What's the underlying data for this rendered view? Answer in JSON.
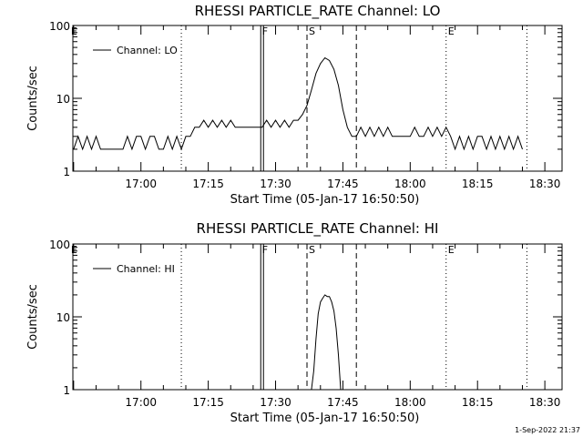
{
  "chart_data": [
    {
      "type": "line",
      "title": "RHESSI PARTICLE_RATE Channel: LO",
      "xlabel": "Start Time (05-Jan-17 16:50:50)",
      "ylabel": "Counts/sec",
      "yscale": "log",
      "ylim": [
        1,
        100
      ],
      "xlim_minutes_after_start": [
        -6,
        103
      ],
      "x_tick_labels": [
        "17:00",
        "17:15",
        "17:30",
        "17:45",
        "18:00",
        "18:15",
        "18:30"
      ],
      "y_tick_labels": [
        "1",
        "10",
        "100"
      ],
      "legend": {
        "position": "top-left",
        "entries": [
          "Channel: LO"
        ]
      },
      "markers": [
        {
          "label": "E",
          "style": "dotted",
          "time": "16:44"
        },
        {
          "label": "",
          "style": "dotted",
          "time": "17:09"
        },
        {
          "label": "F",
          "style": "solid-double",
          "time": "17:27"
        },
        {
          "label": "S",
          "style": "dashed",
          "time": "17:37"
        },
        {
          "label": "",
          "style": "dashed",
          "time": "17:48"
        },
        {
          "label": "E",
          "style": "dotted",
          "time": "18:08"
        },
        {
          "label": "",
          "style": "dotted",
          "time": "18:26"
        }
      ],
      "series": [
        {
          "name": "Channel: LO",
          "x": [
            "16:45",
            "16:46",
            "16:47",
            "16:48",
            "16:49",
            "16:50",
            "16:51",
            "16:52",
            "16:53",
            "16:54",
            "16:55",
            "16:56",
            "16:57",
            "16:58",
            "16:59",
            "17:00",
            "17:01",
            "17:02",
            "17:03",
            "17:04",
            "17:05",
            "17:06",
            "17:07",
            "17:08",
            "17:09",
            "17:10",
            "17:11",
            "17:12",
            "17:13",
            "17:14",
            "17:15",
            "17:16",
            "17:17",
            "17:18",
            "17:19",
            "17:20",
            "17:21",
            "17:22",
            "17:23",
            "17:24",
            "17:25",
            "17:26",
            "17:27",
            "17:28",
            "17:29",
            "17:30",
            "17:31",
            "17:32",
            "17:33",
            "17:34",
            "17:35",
            "17:36",
            "17:37",
            "17:38",
            "17:39",
            "17:40",
            "17:41",
            "17:42",
            "17:43",
            "17:44",
            "17:45",
            "17:46",
            "17:47",
            "17:48",
            "17:49",
            "17:50",
            "17:51",
            "17:52",
            "17:53",
            "17:54",
            "17:55",
            "17:56",
            "17:57",
            "17:58",
            "17:59",
            "18:00",
            "18:01",
            "18:02",
            "18:03",
            "18:04",
            "18:05",
            "18:06",
            "18:07",
            "18:08",
            "18:09",
            "18:10",
            "18:11",
            "18:12",
            "18:13",
            "18:14",
            "18:15",
            "18:16",
            "18:17",
            "18:18",
            "18:19",
            "18:20",
            "18:21",
            "18:22",
            "18:23",
            "18:24",
            "18:25"
          ],
          "values": [
            2,
            3,
            2,
            3,
            2,
            3,
            2,
            2,
            2,
            2,
            2,
            2,
            3,
            2,
            3,
            3,
            2,
            3,
            3,
            2,
            2,
            3,
            2,
            3,
            2,
            3,
            3,
            4,
            4,
            5,
            4,
            5,
            4,
            5,
            4,
            5,
            4,
            4,
            4,
            4,
            4,
            4,
            4,
            5,
            4,
            5,
            4,
            5,
            4,
            5,
            5,
            6,
            8,
            13,
            22,
            30,
            36,
            33,
            25,
            15,
            7,
            4,
            3,
            3,
            4,
            3,
            4,
            3,
            4,
            3,
            4,
            3,
            3,
            3,
            3,
            3,
            4,
            3,
            3,
            4,
            3,
            4,
            3,
            4,
            3,
            2,
            3,
            2,
            3,
            2,
            3,
            3,
            2,
            3,
            2,
            3,
            2,
            3,
            2,
            3,
            2
          ]
        }
      ]
    },
    {
      "type": "line",
      "title": "RHESSI PARTICLE_RATE Channel: HI",
      "xlabel": "Start Time (05-Jan-17 16:50:50)",
      "ylabel": "Counts/sec",
      "yscale": "log",
      "ylim": [
        1,
        100
      ],
      "xlim_minutes_after_start": [
        -6,
        103
      ],
      "x_tick_labels": [
        "17:00",
        "17:15",
        "17:30",
        "17:45",
        "18:00",
        "18:15",
        "18:30"
      ],
      "y_tick_labels": [
        "1",
        "10",
        "100"
      ],
      "legend": {
        "position": "top-left",
        "entries": [
          "Channel: HI"
        ]
      },
      "markers": [
        {
          "label": "E",
          "style": "dotted",
          "time": "16:44"
        },
        {
          "label": "",
          "style": "dotted",
          "time": "17:09"
        },
        {
          "label": "F",
          "style": "solid-double",
          "time": "17:27"
        },
        {
          "label": "S",
          "style": "dashed",
          "time": "17:37"
        },
        {
          "label": "",
          "style": "dashed",
          "time": "17:48"
        },
        {
          "label": "E",
          "style": "dotted",
          "time": "18:08"
        },
        {
          "label": "",
          "style": "dotted",
          "time": "18:26"
        }
      ],
      "series": [
        {
          "name": "Channel: HI",
          "x": [
            "17:38",
            "17:38:30",
            "17:39",
            "17:39:30",
            "17:40",
            "17:40:30",
            "17:41",
            "17:41:30",
            "17:42",
            "17:42:30",
            "17:43",
            "17:43:30",
            "17:44",
            "17:44:30"
          ],
          "values": [
            1,
            1.8,
            5,
            11,
            16,
            18,
            20,
            19,
            19,
            16,
            12,
            7,
            3,
            1
          ]
        }
      ]
    }
  ],
  "timestamp": "1-Sep-2022 21:37"
}
